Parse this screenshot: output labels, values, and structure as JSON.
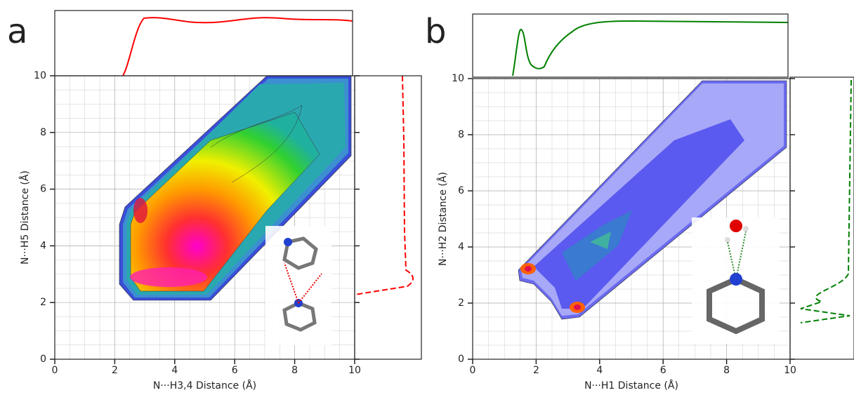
{
  "chart_data": [
    {
      "type": "contour",
      "panel_label": "a",
      "x_label": "N···H3,4 Distance (Å)",
      "y_label": "N···H5 Distance (Å)",
      "xlim": [
        0,
        10
      ],
      "ylim": [
        0,
        10
      ],
      "xticks": [
        0,
        2,
        4,
        6,
        8,
        10
      ],
      "yticks": [
        0,
        2,
        4,
        6,
        8,
        10
      ],
      "grid": true,
      "color": "#ff0000"
    },
    {
      "type": "contour",
      "panel_label": "b",
      "x_label": "N···H1 Distance (Å)",
      "y_label": "N···H2 Distance (Å)",
      "xlim": [
        0,
        10
      ],
      "ylim": [
        0,
        10
      ],
      "xticks": [
        0,
        2,
        4,
        6,
        8,
        10
      ],
      "yticks": [
        0,
        2,
        4,
        6,
        8,
        10
      ],
      "grid": true,
      "color": "#008000"
    }
  ]
}
